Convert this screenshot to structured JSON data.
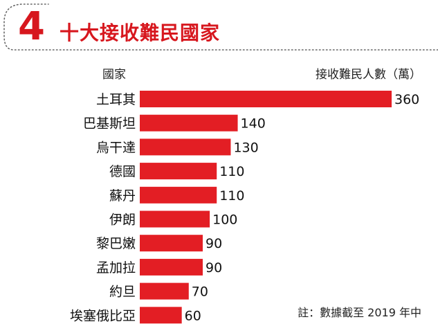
{
  "header": {
    "number": "4",
    "title": "十大接收難民國家"
  },
  "columns": {
    "country": "國家",
    "value": "接收難民人數（萬）"
  },
  "note": "註：數據截至 2019 年中",
  "colors": {
    "bar": "#e31e24",
    "accent": "#d7171e"
  },
  "chart_data": {
    "type": "bar",
    "orientation": "horizontal",
    "title": "十大接收難民國家",
    "xlabel": "接收難民人數（萬）",
    "ylabel": "國家",
    "categories": [
      "土耳其",
      "巴基斯坦",
      "烏干達",
      "德國",
      "蘇丹",
      "伊朗",
      "黎巴嫩",
      "孟加拉",
      "約旦",
      "埃塞俄比亞"
    ],
    "values": [
      360,
      140,
      130,
      110,
      110,
      100,
      90,
      90,
      70,
      60
    ],
    "xlim": [
      0,
      360
    ],
    "grid": false,
    "legend": "none"
  }
}
